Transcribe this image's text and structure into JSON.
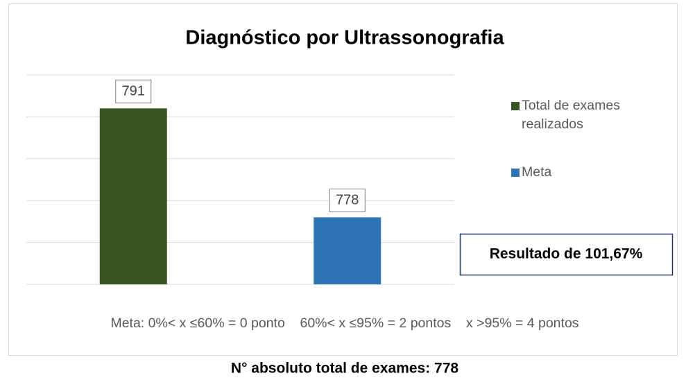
{
  "chart_data": {
    "type": "bar",
    "title": "Diagnóstico por Ultrassonografia",
    "categories": [
      null
    ],
    "series": [
      {
        "name": "Total de exames realizados",
        "color": "#375623",
        "values": [
          791
        ]
      },
      {
        "name": "Meta",
        "color": "#2e75b6",
        "values": [
          778
        ]
      }
    ],
    "ylim": [
      770,
      795
    ],
    "yticks": [
      770,
      775,
      780,
      785,
      790,
      795
    ],
    "grid": true,
    "legend": "right",
    "annotations": [
      "Resultado de 101,67%",
      "Meta: 0%< x ≤60% = 0 ponto    60%< x ≤95% = 2 pontos    x >95% = 4 pontos"
    ],
    "caption": "N° absoluto total de exames: 778"
  }
}
